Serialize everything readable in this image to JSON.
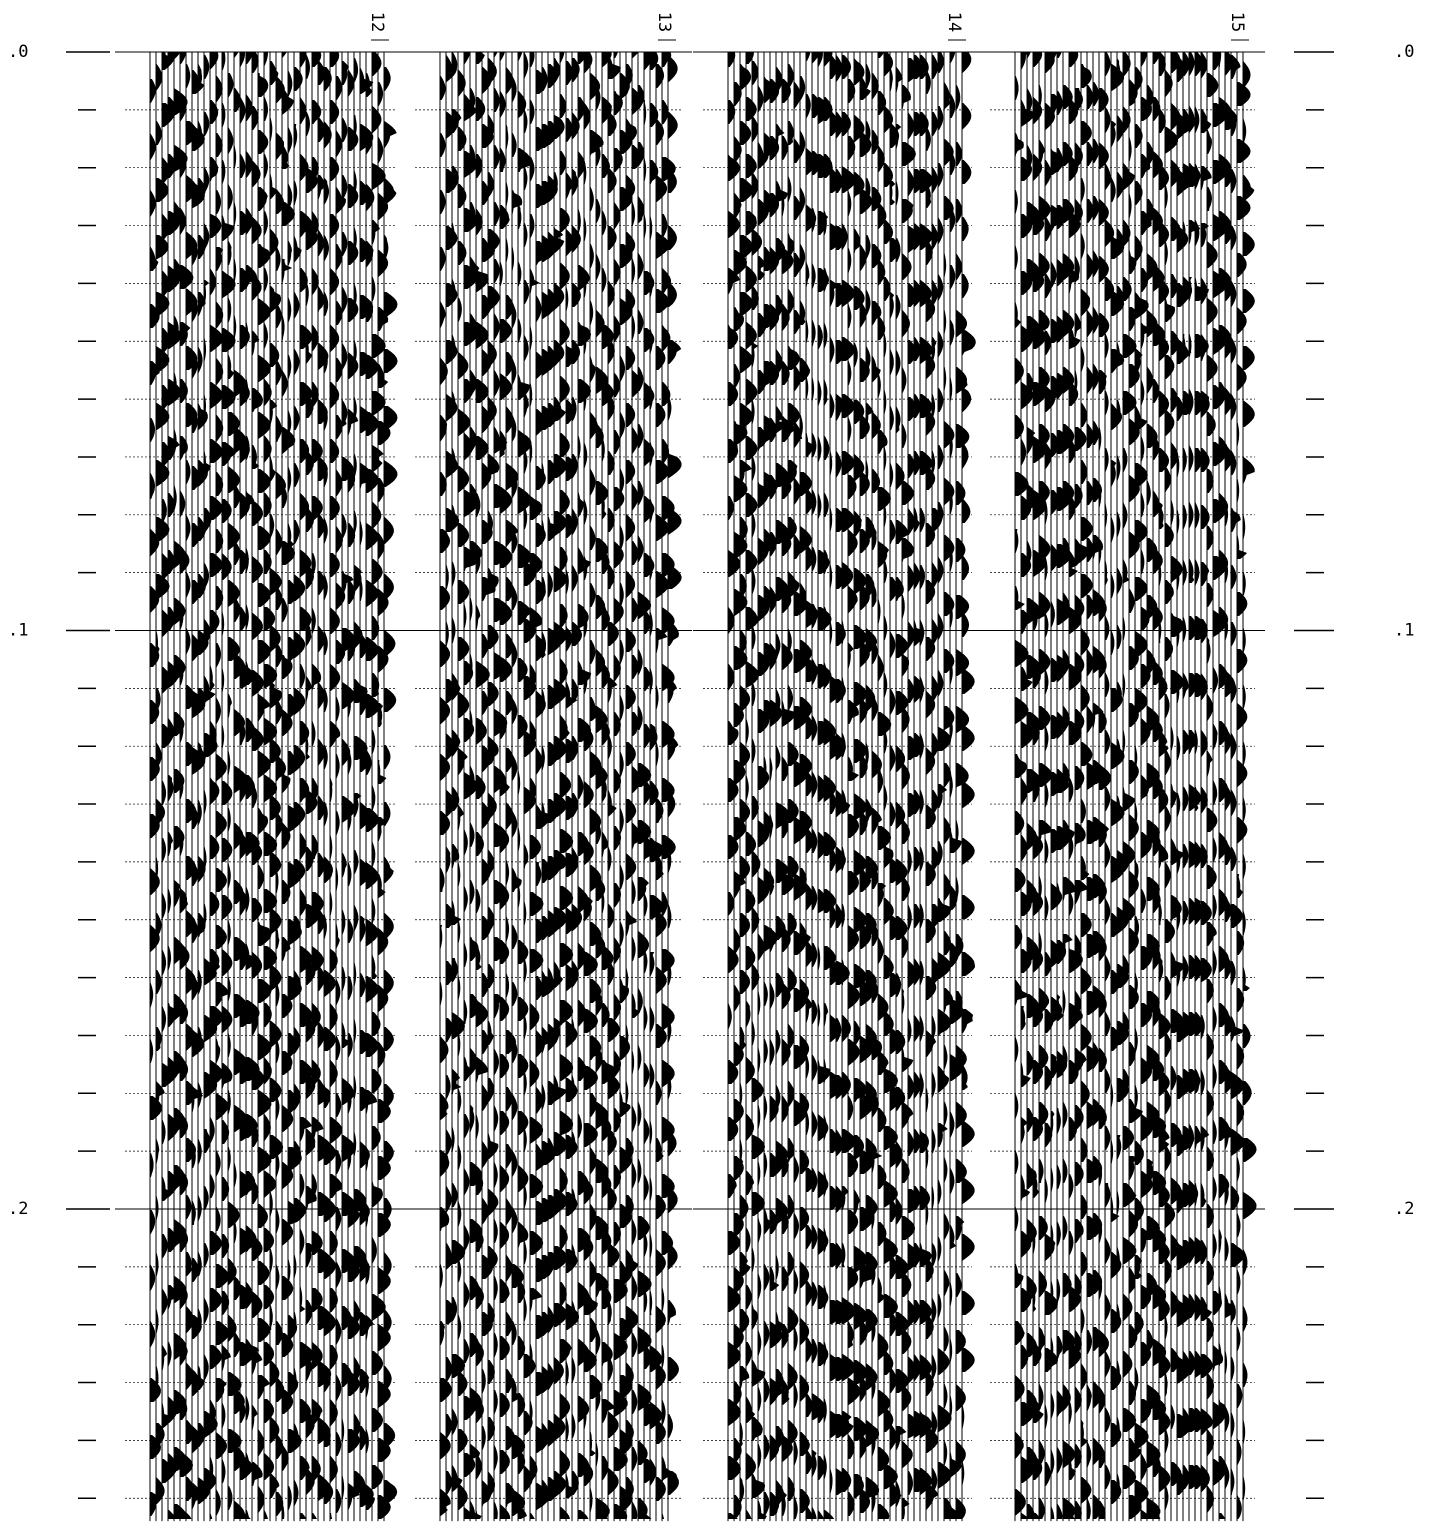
{
  "chart_data": {
    "type": "seismic",
    "categories": [
      "12",
      "13",
      "14",
      "15"
    ],
    "ylim": [
      0,
      0.255
    ],
    "yticks": [
      {
        "value": 0,
        "label": ".0"
      },
      {
        "value": 0.1,
        "label": ".1"
      },
      {
        "value": 0.2,
        "label": ".2"
      }
    ],
    "minor_yticks": [
      0.01,
      0.02,
      0.03,
      0.04,
      0.05,
      0.06,
      0.07,
      0.08,
      0.09,
      0.11,
      0.12,
      0.13,
      0.14,
      0.15,
      0.16,
      0.17,
      0.18,
      0.19,
      0.21,
      0.22,
      0.23,
      0.24,
      0.25
    ],
    "color": "#000000",
    "grid": true
  }
}
